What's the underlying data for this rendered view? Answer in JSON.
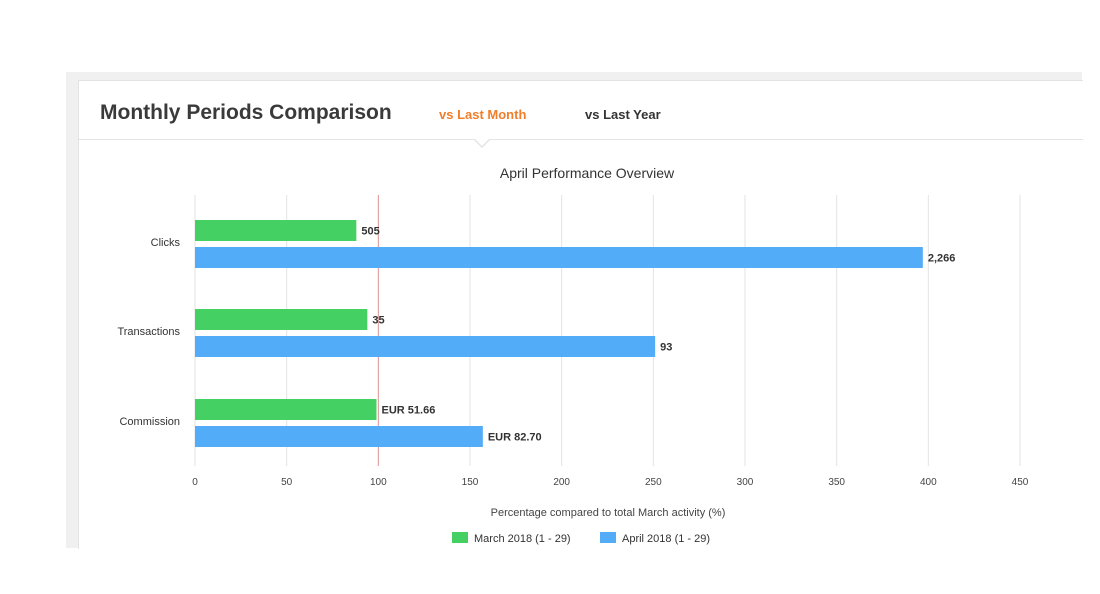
{
  "header": {
    "title": "Monthly Periods Comparison",
    "tabs": [
      {
        "label": "vs Last Month",
        "active": true
      },
      {
        "label": "vs Last Year",
        "active": false
      }
    ]
  },
  "colors": {
    "march": "#44d062",
    "april": "#52acf7",
    "active_tab": "#f07e2a",
    "plot_line": "#e06060"
  },
  "chart_data": {
    "type": "bar",
    "orientation": "horizontal",
    "title": "April Performance Overview",
    "xlabel": "Percentage compared to total March activity (%)",
    "ylabel": "",
    "xlim": [
      0,
      450
    ],
    "xticks": [
      0,
      50,
      100,
      150,
      200,
      250,
      300,
      350,
      400,
      450
    ],
    "grid": true,
    "reference_line": 100,
    "legend_position": "bottom",
    "categories": [
      "Clicks",
      "Transactions",
      "Commission"
    ],
    "series": [
      {
        "name": "March 2018 (1 - 29)",
        "color": "#44d062",
        "values": [
          88,
          94,
          99
        ],
        "labels": [
          "505",
          "35",
          "EUR 51.66"
        ]
      },
      {
        "name": "April 2018 (1 - 29)",
        "color": "#52acf7",
        "values": [
          397,
          251,
          157
        ],
        "labels": [
          "2,266",
          "93",
          "EUR 82.70"
        ]
      }
    ]
  }
}
